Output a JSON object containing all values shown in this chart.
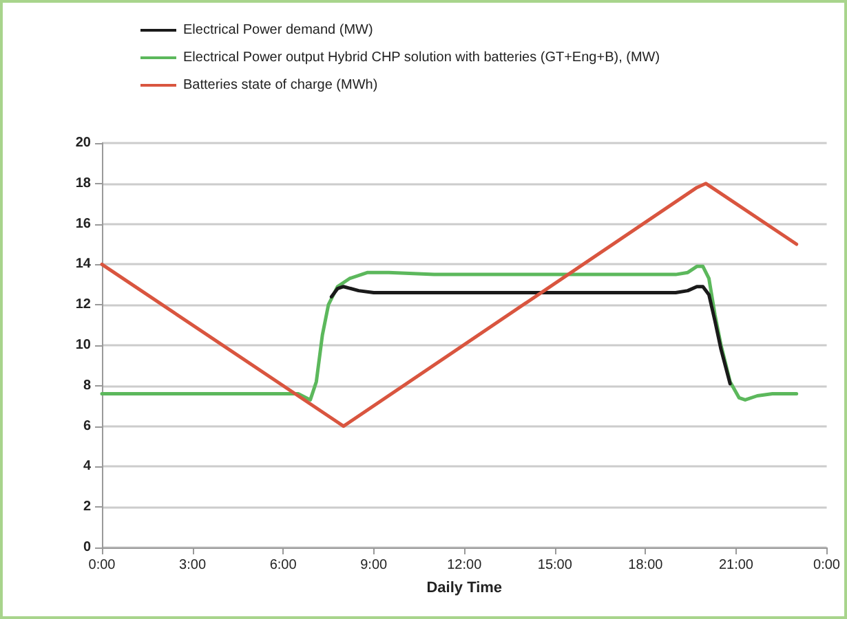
{
  "chart_data": {
    "type": "line",
    "xlabel": "Daily Time",
    "xlim": [
      0,
      24
    ],
    "xticks": [
      {
        "value": 0,
        "label": "0:00"
      },
      {
        "value": 3,
        "label": "3:00"
      },
      {
        "value": 6,
        "label": "6:00"
      },
      {
        "value": 9,
        "label": "9:00"
      },
      {
        "value": 12,
        "label": "12:00"
      },
      {
        "value": 15,
        "label": "15:00"
      },
      {
        "value": 18,
        "label": "18:00"
      },
      {
        "value": 21,
        "label": "21:00"
      },
      {
        "value": 24,
        "label": "0:00"
      }
    ],
    "ylim": [
      0,
      20
    ],
    "yticks": [
      0,
      2,
      4,
      6,
      8,
      10,
      12,
      14,
      16,
      18,
      20
    ],
    "grid": "y",
    "legend": "top left",
    "marker": "none",
    "line_style": "solid",
    "series": [
      {
        "name": "Electrical Power output Hybrid CHP solution with batteries (GT+Eng+B), (MW)",
        "color": "#5cb85c",
        "x": [
          0,
          6.5,
          6.9,
          7.1,
          7.3,
          7.5,
          7.8,
          8.2,
          8.8,
          9.5,
          11,
          15,
          19,
          19.4,
          19.7,
          19.9,
          20.1,
          20.3,
          20.5,
          20.8,
          21.1,
          21.3,
          21.7,
          22.2,
          23
        ],
        "values": [
          7.6,
          7.6,
          7.3,
          8.2,
          10.5,
          12,
          12.9,
          13.3,
          13.6,
          13.6,
          13.5,
          13.5,
          13.5,
          13.6,
          13.9,
          13.9,
          13.3,
          11.5,
          10,
          8.2,
          7.4,
          7.3,
          7.5,
          7.6,
          7.6
        ]
      },
      {
        "name": "Electrical Power demand (MW)",
        "color": "#1a1a1a",
        "x": [
          7.6,
          7.8,
          8.0,
          8.5,
          9,
          12,
          15,
          19,
          19.4,
          19.7,
          19.9,
          20.1,
          20.3,
          20.5,
          20.8
        ],
        "values": [
          12.4,
          12.8,
          12.9,
          12.7,
          12.6,
          12.6,
          12.6,
          12.6,
          12.7,
          12.9,
          12.9,
          12.5,
          11.2,
          9.8,
          8.1
        ]
      },
      {
        "name": "Batteries state of charge (MWh)",
        "color": "#d9553f",
        "x": [
          0,
          7.8,
          8,
          8.2,
          19.7,
          20,
          20.3,
          23
        ],
        "values": [
          14,
          6.2,
          6,
          6.2,
          17.8,
          18,
          17.7,
          15
        ]
      }
    ]
  }
}
